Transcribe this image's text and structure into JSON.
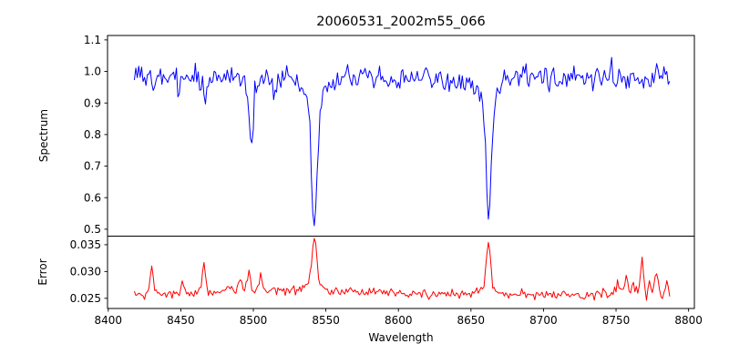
{
  "chart_data": {
    "type": "line",
    "title": "20060531_2002m55_066",
    "xlabel": "Wavelength",
    "xlim": [
      8399.5,
      8804
    ],
    "xticks": [
      8400,
      8450,
      8500,
      8550,
      8600,
      8650,
      8700,
      8750,
      8800
    ],
    "xtick_labels": [
      "8400",
      "8450",
      "8500",
      "8550",
      "8600",
      "8650",
      "8700",
      "8750",
      "8800"
    ],
    "background_color": "#ffffff",
    "frame_color": "#000000",
    "legend": "none",
    "grid": false,
    "panels": [
      {
        "name": "spectrum",
        "ylabel": "Spectrum",
        "ylim": [
          0.478,
          1.114
        ],
        "yticks": [
          0.5,
          0.6,
          0.7,
          0.8,
          0.9,
          1.0,
          1.1
        ],
        "ytick_labels": [
          "0.5",
          "0.6",
          "0.7",
          "0.8",
          "0.9",
          "1.0",
          "1.1"
        ],
        "series": {
          "name": "spectrum-trace",
          "color": "#0000ff",
          "line_width": 1,
          "x_start": 8418,
          "x_end": 8787,
          "x_step": 1,
          "baseline": 0.978,
          "noise_sigma": 0.0195,
          "noise_seed": 20060531,
          "extra_noise": {
            "from": 8700,
            "sigma": 0.006
          },
          "absorption_lines": [
            {
              "center": 8498.7,
              "depth": 0.22,
              "sigma": 1.3
            },
            {
              "center": 8498.7,
              "depth": 0.026,
              "sigma": 4.0
            },
            {
              "center": 8542.1,
              "depth": 0.36,
              "sigma": 1.8
            },
            {
              "center": 8542.1,
              "depth": 0.105,
              "sigma": 5.5
            },
            {
              "center": 8662.1,
              "depth": 0.34,
              "sigma": 1.7
            },
            {
              "center": 8662.1,
              "depth": 0.095,
              "sigma": 5.0
            },
            {
              "center": 8467.0,
              "depth": 0.06,
              "sigma": 1.2
            },
            {
              "center": 8514.0,
              "depth": 0.045,
              "sigma": 1.2
            }
          ]
        }
      },
      {
        "name": "error",
        "ylabel": "Error",
        "ylim": [
          0.0231,
          0.0366
        ],
        "yticks": [
          0.025,
          0.03,
          0.035
        ],
        "ytick_labels": [
          "0.025",
          "0.030",
          "0.035"
        ],
        "series": {
          "name": "error-trace",
          "color": "#ff0000",
          "line_width": 1,
          "x_start": 8418,
          "x_end": 8787,
          "x_step": 1,
          "baseline": 0.0256,
          "noise_sigma": 0.0004,
          "noise_seed": 2002,
          "extra_noise": {
            "from": 8740,
            "sigma": 0.00042
          },
          "broad_bump": {
            "center": 8525,
            "height": 0.0007,
            "sigma": 55
          },
          "peaks": [
            {
              "center": 8430,
              "height": 0.0048,
              "sigma": 1.2
            },
            {
              "center": 8451,
              "height": 0.0018,
              "sigma": 1.2
            },
            {
              "center": 8466,
              "height": 0.0046,
              "sigma": 1.2
            },
            {
              "center": 8483,
              "height": 0.0013,
              "sigma": 1.5
            },
            {
              "center": 8491,
              "height": 0.0018,
              "sigma": 1.5
            },
            {
              "center": 8497,
              "height": 0.0036,
              "sigma": 1.3
            },
            {
              "center": 8505,
              "height": 0.0035,
              "sigma": 1.2
            },
            {
              "center": 8542,
              "height": 0.0082,
              "sigma": 1.6
            },
            {
              "center": 8542,
              "height": 0.0015,
              "sigma": 6.0
            },
            {
              "center": 8662,
              "height": 0.0088,
              "sigma": 1.5
            },
            {
              "center": 8662,
              "height": 0.0012,
              "sigma": 6.0
            },
            {
              "center": 8742,
              "height": 0.0013,
              "sigma": 1.5
            },
            {
              "center": 8752,
              "height": 0.002,
              "sigma": 1.2
            },
            {
              "center": 8757,
              "height": 0.003,
              "sigma": 1.2
            },
            {
              "center": 8762,
              "height": 0.0026,
              "sigma": 1.2
            },
            {
              "center": 8768,
              "height": 0.0068,
              "sigma": 1.0
            },
            {
              "center": 8773,
              "height": 0.002,
              "sigma": 1.2
            },
            {
              "center": 8778,
              "height": 0.0045,
              "sigma": 1.3
            },
            {
              "center": 8785,
              "height": 0.0015,
              "sigma": 1.2
            }
          ]
        }
      }
    ]
  }
}
